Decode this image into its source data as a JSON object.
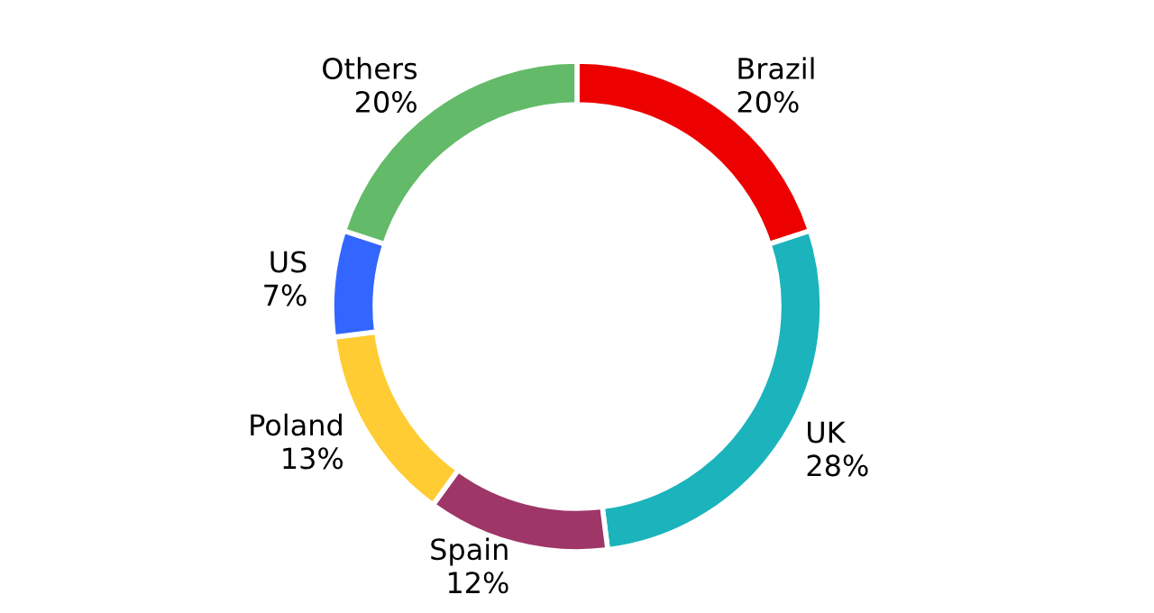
{
  "chart_data": {
    "type": "donut",
    "categories": [
      "Brazil",
      "UK",
      "Spain",
      "Poland",
      "US",
      "Others"
    ],
    "values": [
      20,
      28,
      12,
      13,
      7,
      20
    ],
    "colors": [
      "#ec0000",
      "#1bb3bc",
      "#9e3667",
      "#ffcc33",
      "#3366ff",
      "#63ba68"
    ],
    "value_labels": [
      "20%",
      "28%",
      "12%",
      "13%",
      "7%",
      "20%"
    ],
    "legend": false
  }
}
